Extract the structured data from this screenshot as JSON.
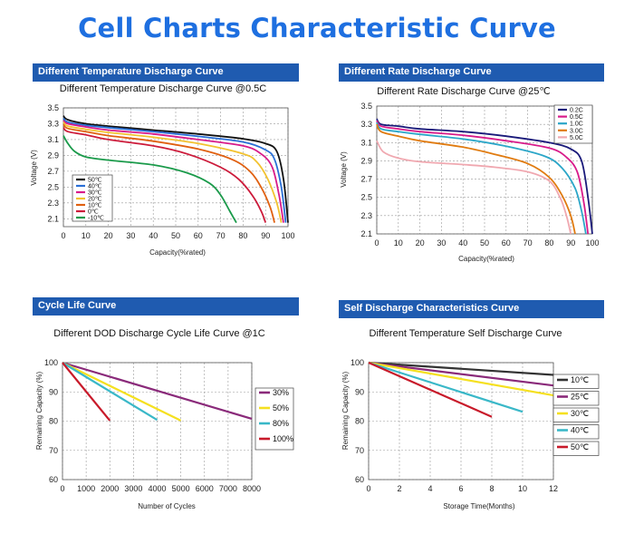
{
  "title": "Cell Charts Characteristic Curve",
  "panels": [
    {
      "header": "Different Temperature Discharge Curve",
      "chart_data": {
        "type": "line",
        "title": "Different Temperature Discharge Curve @0.5C",
        "xlabel": "Capacity(%rated)",
        "ylabel": "Voltage (V)",
        "xlim": [
          0,
          100
        ],
        "ylim": [
          2.0,
          3.5
        ],
        "xticks": [
          "0",
          "10",
          "20",
          "30",
          "40",
          "50",
          "60",
          "70",
          "80",
          "90",
          "100"
        ],
        "yticks": [
          "3.5",
          "3.3",
          "3.1",
          "2.9",
          "2.7",
          "2.5",
          "2.3",
          "2.1"
        ],
        "grid": true,
        "legend_position": "left",
        "series": [
          {
            "name": "50℃",
            "color": "#111111",
            "x": [
              0,
              2,
              10,
              20,
              40,
              60,
              80,
              90,
              95,
              98,
              100
            ],
            "y": [
              3.4,
              3.35,
              3.3,
              3.27,
              3.22,
              3.17,
              3.11,
              3.05,
              2.95,
              2.6,
              2.05
            ]
          },
          {
            "name": "40℃",
            "color": "#2a6fd6",
            "x": [
              0,
              2,
              10,
              20,
              40,
              60,
              80,
              90,
              94,
              97,
              99
            ],
            "y": [
              3.37,
              3.32,
              3.28,
              3.25,
              3.2,
              3.14,
              3.07,
              2.97,
              2.85,
              2.5,
              2.05
            ]
          },
          {
            "name": "30℃",
            "color": "#d81b8a",
            "x": [
              0,
              2,
              10,
              20,
              40,
              60,
              80,
              88,
              93,
              96,
              98
            ],
            "y": [
              3.34,
              3.3,
              3.26,
              3.22,
              3.17,
              3.1,
              3.02,
              2.92,
              2.75,
              2.4,
              2.05
            ]
          },
          {
            "name": "20℃",
            "color": "#f2c230",
            "x": [
              0,
              2,
              10,
              20,
              40,
              60,
              80,
              86,
              91,
              95,
              97
            ],
            "y": [
              3.32,
              3.27,
              3.23,
              3.19,
              3.13,
              3.05,
              2.92,
              2.82,
              2.6,
              2.3,
              2.05
            ]
          },
          {
            "name": "10℃",
            "color": "#e06010",
            "x": [
              0,
              2,
              10,
              20,
              40,
              60,
              75,
              83,
              88,
              92,
              94
            ],
            "y": [
              3.29,
              3.24,
              3.2,
              3.15,
              3.08,
              2.98,
              2.85,
              2.7,
              2.5,
              2.25,
              2.05
            ]
          },
          {
            "name": "0℃",
            "color": "#cc1a3a",
            "x": [
              0,
              2,
              10,
              20,
              40,
              55,
              70,
              78,
              84,
              88,
              90
            ],
            "y": [
              3.25,
              3.2,
              3.16,
              3.1,
              3.02,
              2.92,
              2.75,
              2.6,
              2.4,
              2.2,
              2.05
            ]
          },
          {
            "name": "-10℃",
            "color": "#1a9a4a",
            "x": [
              0,
              2,
              5,
              10,
              20,
              40,
              55,
              65,
              70,
              74,
              77
            ],
            "y": [
              3.15,
              3.05,
              2.95,
              2.88,
              2.84,
              2.78,
              2.68,
              2.55,
              2.4,
              2.2,
              2.05
            ]
          }
        ]
      }
    },
    {
      "header": "Different Rate Discharge Curve",
      "chart_data": {
        "type": "line",
        "title": "Different Rate Discharge Curve @25℃",
        "xlabel": "Capacity(%rated)",
        "ylabel": "Voltage (V)",
        "xlim": [
          0,
          100
        ],
        "ylim": [
          2.1,
          3.5
        ],
        "xticks": [
          "0",
          "10",
          "20",
          "30",
          "40",
          "50",
          "60",
          "70",
          "80",
          "90",
          "100"
        ],
        "yticks": [
          "3.5",
          "3.3",
          "3.1",
          "2.9",
          "2.7",
          "2.5",
          "2.3",
          "2.1"
        ],
        "grid": true,
        "legend_position": "top-right",
        "series": [
          {
            "name": "0.2C",
            "color": "#1a1a7a",
            "x": [
              0,
              2,
              10,
              20,
              40,
              60,
              80,
              90,
              95,
              98,
              100
            ],
            "y": [
              3.36,
              3.3,
              3.28,
              3.25,
              3.22,
              3.17,
              3.1,
              3.03,
              2.9,
              2.5,
              2.1
            ]
          },
          {
            "name": "0.5C",
            "color": "#d81b8a",
            "x": [
              0,
              2,
              10,
              20,
              40,
              60,
              80,
              88,
              93,
              96,
              98
            ],
            "y": [
              3.34,
              3.28,
              3.25,
              3.22,
              3.18,
              3.12,
              3.04,
              2.94,
              2.78,
              2.45,
              2.1
            ]
          },
          {
            "name": "1.0C",
            "color": "#2ba6c8",
            "x": [
              0,
              2,
              10,
              20,
              40,
              60,
              78,
              86,
              92,
              95,
              97
            ],
            "y": [
              3.32,
              3.25,
              3.22,
              3.19,
              3.14,
              3.06,
              2.95,
              2.82,
              2.6,
              2.35,
              2.1
            ]
          },
          {
            "name": "3.0C",
            "color": "#e07b10",
            "x": [
              0,
              2,
              10,
              20,
              40,
              55,
              70,
              80,
              86,
              90,
              92
            ],
            "y": [
              3.3,
              3.22,
              3.17,
              3.12,
              3.05,
              2.97,
              2.87,
              2.72,
              2.52,
              2.3,
              2.1
            ]
          },
          {
            "name": "5.0C",
            "color": "#f0a8b0",
            "x": [
              0,
              3,
              10,
              20,
              40,
              55,
              70,
              80,
              85,
              88,
              90
            ],
            "y": [
              3.12,
              3.0,
              2.93,
              2.89,
              2.86,
              2.83,
              2.78,
              2.68,
              2.5,
              2.3,
              2.1
            ]
          }
        ]
      }
    },
    {
      "header": "Cycle Life Curve",
      "chart_data": {
        "type": "line",
        "title": "Different DOD Discharge Cycle Life Curve @1C",
        "xlabel": "Number of Cycles",
        "ylabel": "Remaining Capacity (%)",
        "xlim": [
          0,
          8000
        ],
        "ylim": [
          60,
          100
        ],
        "xticks": [
          "0",
          "1000",
          "2000",
          "3000",
          "4000",
          "5000",
          "6000",
          "7000",
          "8000"
        ],
        "yticks": [
          "100",
          "90",
          "80",
          "70",
          "60"
        ],
        "grid": true,
        "legend_position": "right",
        "series": [
          {
            "name": "30%",
            "color": "#8a2a7a",
            "x": [
              0,
              8000
            ],
            "y": [
              100,
              80.8
            ]
          },
          {
            "name": "50%",
            "color": "#f5e020",
            "x": [
              0,
              5000
            ],
            "y": [
              100,
              80.2
            ]
          },
          {
            "name": "80%",
            "color": "#3ab8c8",
            "x": [
              0,
              4000
            ],
            "y": [
              100,
              80.4
            ]
          },
          {
            "name": "100%",
            "color": "#c81a2a",
            "x": [
              0,
              2000
            ],
            "y": [
              100,
              80.2
            ]
          }
        ]
      }
    },
    {
      "header": "Self Discharge Characteristics Curve",
      "chart_data": {
        "type": "line",
        "title": "Different Temperature Self Discharge Curve",
        "xlabel": "Storage Time(Months)",
        "ylabel": "Remaining Capacity (%)",
        "xlim": [
          0,
          12
        ],
        "ylim": [
          60,
          100
        ],
        "xticks": [
          "0",
          "2",
          "4",
          "6",
          "8",
          "10",
          "12"
        ],
        "yticks": [
          "100",
          "90",
          "80",
          "70",
          "60"
        ],
        "grid": true,
        "legend_position": "right",
        "series": [
          {
            "name": "10℃",
            "color": "#333333",
            "x": [
              0,
              12
            ],
            "y": [
              100,
              95.8
            ]
          },
          {
            "name": "25℃",
            "color": "#8a2a7a",
            "x": [
              0,
              12
            ],
            "y": [
              100,
              92.2
            ]
          },
          {
            "name": "30℃",
            "color": "#f5e020",
            "x": [
              0,
              12
            ],
            "y": [
              100,
              88.8
            ]
          },
          {
            "name": "40℃",
            "color": "#3ab8c8",
            "x": [
              0,
              10
            ],
            "y": [
              100,
              83.2
            ]
          },
          {
            "name": "50℃",
            "color": "#c81a2a",
            "x": [
              0,
              8
            ],
            "y": [
              100,
              81.5
            ]
          }
        ]
      }
    }
  ]
}
